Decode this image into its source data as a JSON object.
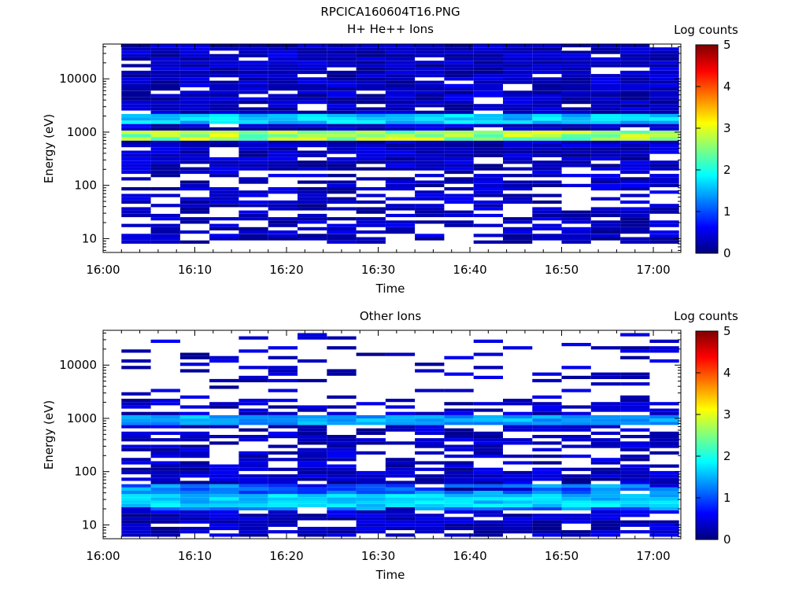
{
  "figure_title": "RPCICA160604T16.PNG",
  "chart_data": [
    {
      "type": "heatmap",
      "title": "H+ He++ Ions",
      "xlabel": "Time",
      "ylabel": "Energy (eV)",
      "colorbar_label": "Log counts",
      "colorbar_ticks": [
        "0",
        "1",
        "2",
        "3",
        "4",
        "5"
      ],
      "colorbar_range": [
        0,
        5
      ],
      "x_ticks": [
        "16:00",
        "16:10",
        "16:20",
        "16:30",
        "16:40",
        "16:50",
        "17:00"
      ],
      "x_range_minutes": [
        0,
        63
      ],
      "y_scale": "log",
      "y_ticks": [
        "10",
        "100",
        "1000",
        "10000"
      ],
      "y_range_eV": [
        5.5,
        45000
      ],
      "time_bins_start_minutes": [
        2,
        5.2,
        8.4,
        11.6,
        14.8,
        18,
        21.2,
        24.4,
        27.6,
        30.8,
        34,
        37.2,
        40.4,
        43.6,
        46.8,
        50,
        53.2,
        56.4,
        59.6
      ],
      "bright_bands_eV": [
        {
          "low": 780,
          "high": 1000,
          "peak_log_counts": 3.1
        },
        {
          "low": 1550,
          "high": 1950,
          "peak_log_counts": 1.9
        }
      ],
      "emission_low_limit_eV": 8,
      "emission_high_limit_eV": 45000
    },
    {
      "type": "heatmap",
      "title": "Other Ions",
      "xlabel": "Time",
      "ylabel": "Energy (eV)",
      "colorbar_label": "Log counts",
      "colorbar_ticks": [
        "0",
        "1",
        "2",
        "3",
        "4",
        "5"
      ],
      "colorbar_range": [
        0,
        5
      ],
      "x_ticks": [
        "16:00",
        "16:10",
        "16:20",
        "16:30",
        "16:40",
        "16:50",
        "17:00"
      ],
      "x_range_minutes": [
        0,
        63
      ],
      "y_scale": "log",
      "y_ticks": [
        "10",
        "100",
        "1000",
        "10000"
      ],
      "y_range_eV": [
        5.5,
        45000
      ],
      "time_bins_start_minutes": [
        2,
        5.2,
        8.4,
        11.6,
        14.8,
        18,
        21.2,
        24.4,
        27.6,
        30.8,
        34,
        37.2,
        40.4,
        43.6,
        46.8,
        50,
        53.2,
        56.4,
        59.6
      ],
      "bright_bands_eV": [
        {
          "low": 800,
          "high": 1000,
          "peak_log_counts": 1.7
        },
        {
          "low": 25,
          "high": 35,
          "peak_log_counts": 1.9
        }
      ],
      "emission_low_limit_eV": 6,
      "emission_high_limit_eV": 40000
    }
  ]
}
